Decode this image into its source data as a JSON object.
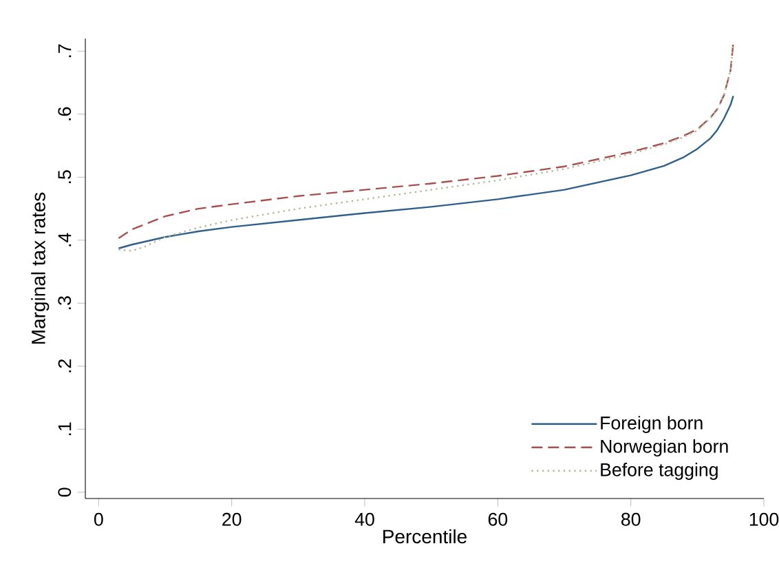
{
  "chart_data": {
    "type": "line",
    "xlabel": "Percentile",
    "ylabel": "Marginal tax rates",
    "xlim": [
      -2,
      100
    ],
    "ylim": [
      -0.01,
      0.72
    ],
    "xticks": [
      0,
      20,
      40,
      60,
      80,
      100
    ],
    "yticks": [
      {
        "value": 0,
        "label": "0"
      },
      {
        "value": 0.1,
        "label": ".1"
      },
      {
        "value": 0.2,
        "label": ".2"
      },
      {
        "value": 0.3,
        "label": ".3"
      },
      {
        "value": 0.4,
        "label": ".4"
      },
      {
        "value": 0.5,
        "label": ".5"
      },
      {
        "value": 0.6,
        "label": ".6"
      },
      {
        "value": 0.7,
        "label": ".7"
      }
    ],
    "grid": false,
    "legend": "bottom right",
    "marker": "none",
    "series": [
      {
        "name": "Foreign born",
        "color": "#2f5f8a",
        "line_style": "solid",
        "x": [
          3,
          5,
          10,
          15,
          20,
          30,
          40,
          50,
          60,
          70,
          80,
          85,
          88,
          90,
          92,
          93,
          94,
          95,
          95.4
        ],
        "values": [
          0.387,
          0.393,
          0.405,
          0.414,
          0.421,
          0.432,
          0.443,
          0.453,
          0.465,
          0.48,
          0.503,
          0.518,
          0.532,
          0.545,
          0.562,
          0.575,
          0.593,
          0.615,
          0.629
        ]
      },
      {
        "name": "Norwegian born",
        "color": "#a85050",
        "line_style": "dashed",
        "x": [
          3,
          5,
          10,
          15,
          20,
          30,
          40,
          50,
          60,
          70,
          80,
          85,
          88,
          90,
          92,
          93,
          94,
          95,
          95.4
        ],
        "values": [
          0.403,
          0.417,
          0.438,
          0.45,
          0.457,
          0.47,
          0.48,
          0.49,
          0.502,
          0.517,
          0.54,
          0.554,
          0.566,
          0.576,
          0.595,
          0.608,
          0.63,
          0.67,
          0.713
        ]
      },
      {
        "name": "Before tagging",
        "color": "#b8b89a",
        "line_style": "dotted",
        "x": [
          3,
          5,
          7,
          10,
          15,
          20,
          30,
          40,
          50,
          60,
          70,
          80,
          85,
          88,
          90,
          92,
          93,
          94,
          95,
          95.4
        ],
        "values": [
          0.385,
          0.383,
          0.39,
          0.405,
          0.42,
          0.432,
          0.45,
          0.465,
          0.48,
          0.495,
          0.513,
          0.537,
          0.552,
          0.564,
          0.574,
          0.594,
          0.607,
          0.63,
          0.67,
          0.71
        ]
      }
    ]
  }
}
